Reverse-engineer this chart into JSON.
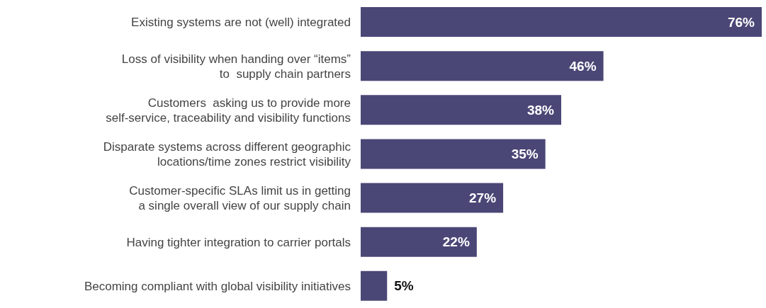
{
  "chart_data": {
    "type": "bar",
    "orientation": "horizontal",
    "relative": false,
    "categories": [
      "Existing systems are not (well) integrated",
      "Loss of visibility when handing over “items”\nto  supply chain partners",
      "Customers  asking us to provide more\nself-service, traceability and visibility functions",
      "Disparate systems across different geographic\nlocations/time zones restrict visibility",
      "Customer-specific SLAs limit us in getting\na single overall view of our supply chain",
      "Having tighter integration to carrier portals",
      "Becoming compliant with global visibility initiatives"
    ],
    "values": [
      76,
      46,
      38,
      35,
      27,
      22,
      5
    ],
    "value_labels": [
      "76%",
      "46%",
      "38%",
      "35%",
      "27%",
      "22%",
      "5%"
    ],
    "color": "#4a4776",
    "grid": false,
    "legend": false
  }
}
